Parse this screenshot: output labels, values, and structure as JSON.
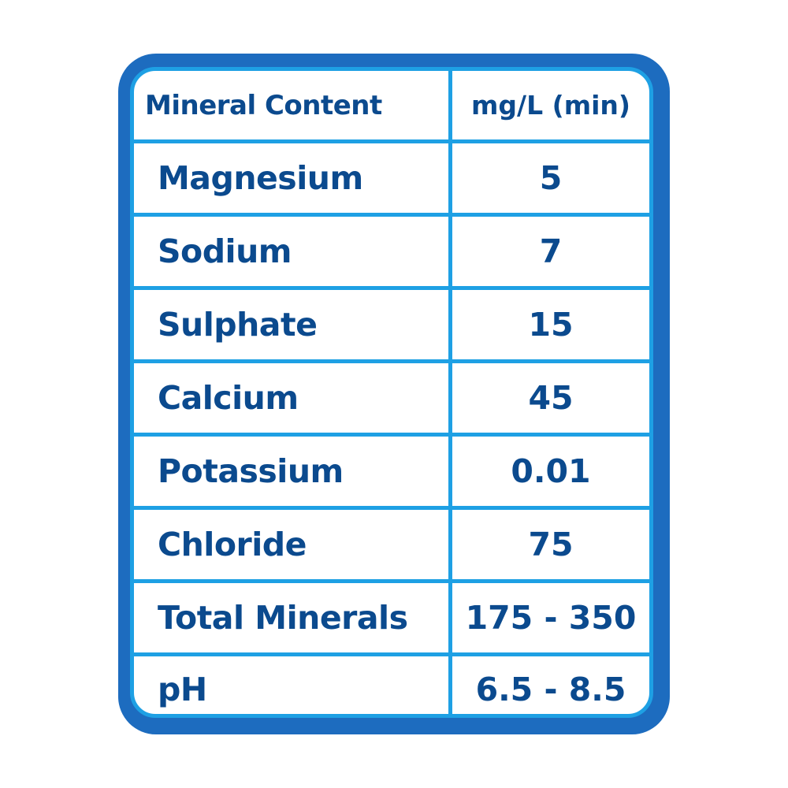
{
  "table": {
    "headers": [
      "Mineral Content",
      "mg/L (min)"
    ],
    "rows": [
      [
        "Magnesium",
        "5"
      ],
      [
        "Sodium",
        "7"
      ],
      [
        "Sulphate",
        "15"
      ],
      [
        "Calcium",
        "45"
      ],
      [
        "Potassium",
        "0.01"
      ],
      [
        "Chloride",
        "75"
      ],
      [
        "Total Minerals",
        "175 - 350"
      ],
      [
        "pH",
        "6.5 - 8.5"
      ]
    ]
  },
  "colors": {
    "text": "#0b4a8e",
    "frame": "#1d6cbf",
    "grid": "#1ea0e4"
  }
}
